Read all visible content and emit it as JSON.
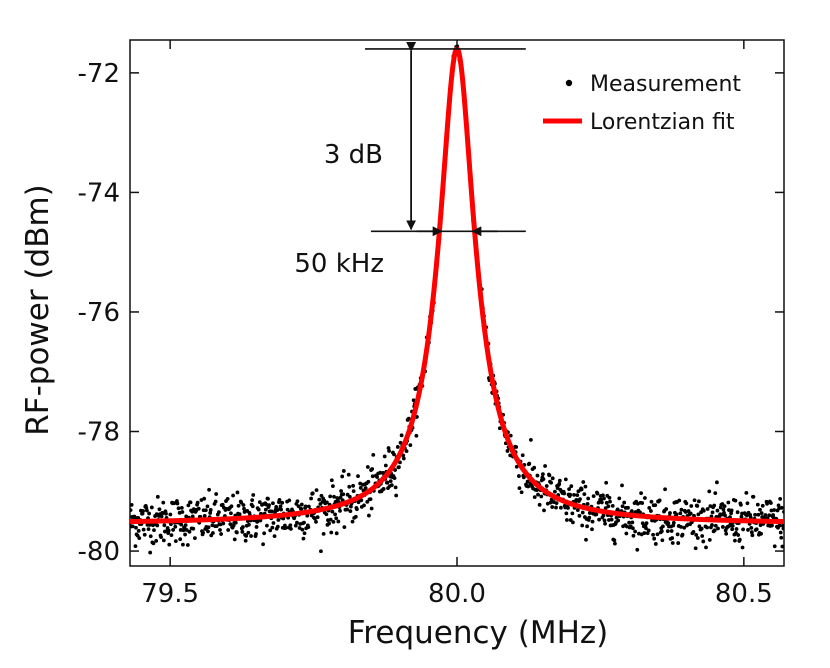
{
  "chart_data": {
    "type": "scatter",
    "xlabel": "Frequency (MHz)",
    "ylabel": "RF-power (dBm)",
    "xlim": [
      79.43,
      80.57
    ],
    "ylim": [
      -80.25,
      -71.45
    ],
    "x_ticks": [
      79.5,
      80.0,
      80.5
    ],
    "x_tick_labels": [
      "79.5",
      "80.0",
      "80.5"
    ],
    "y_ticks": [
      -72,
      -74,
      -76,
      -78,
      -80
    ],
    "y_tick_labels": [
      "-72",
      "-74",
      "-76",
      "-78",
      "-80"
    ],
    "grid": false,
    "legend": {
      "position": "top-right",
      "entries": [
        "Measurement",
        "Lorentzian fit"
      ]
    },
    "series": [
      {
        "name": "Measurement",
        "kind": "scatter",
        "color": "#000000",
        "x_range": [
          79.43,
          80.57
        ],
        "n_points": 1200,
        "noise_floor_std_dB": 0.2
      },
      {
        "name": "Lorentzian fit",
        "kind": "line",
        "color": "#ff0000",
        "center_MHz": 80.0,
        "fwhm_MHz": 0.05,
        "peak_dBm": -71.6,
        "baseline_dBm": -79.55
      }
    ],
    "annotations": {
      "height_label": "3 dB",
      "width_label": "50 kHz",
      "peak_level": -71.6,
      "half_level": -74.65,
      "arrow_x": 79.92,
      "line_x_range": [
        79.85,
        80.12
      ]
    }
  }
}
